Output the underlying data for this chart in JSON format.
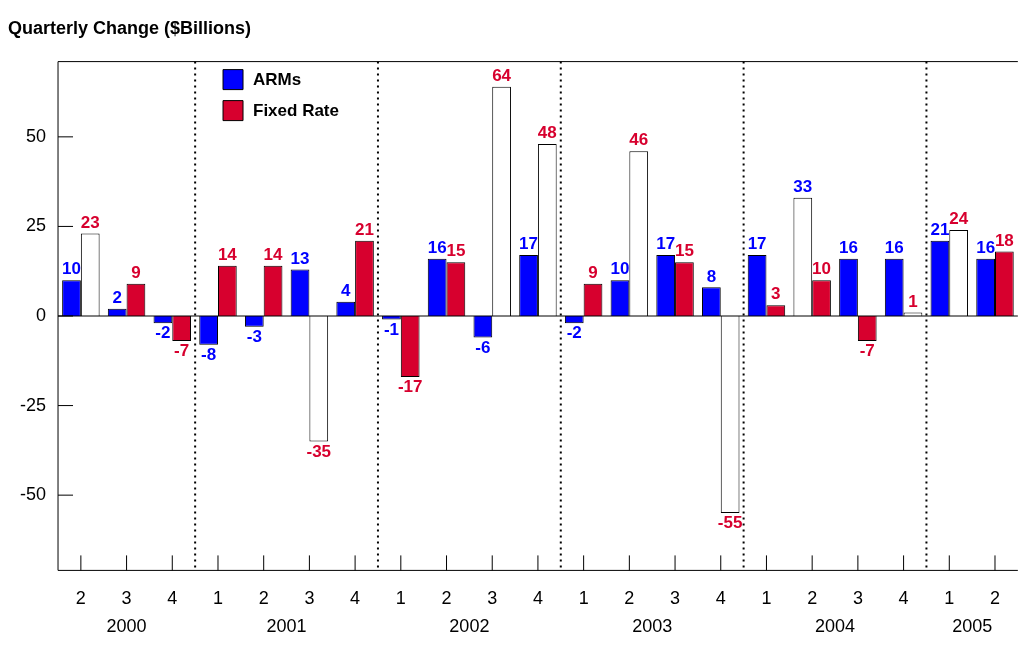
{
  "chart_data": {
    "type": "bar",
    "ylabel": "Quarterly Change ($Billions)",
    "categories": [
      "2",
      "3",
      "4",
      "1",
      "2",
      "3",
      "4",
      "1",
      "2",
      "3",
      "4",
      "1",
      "2",
      "3",
      "4",
      "1",
      "2",
      "3",
      "4",
      "1",
      "2"
    ],
    "series": [
      {
        "name": "ARMs",
        "color": "#0000ff",
        "colors": [
          "#0000ff",
          "#0000ff",
          "#0000ff",
          "#0000ff",
          "#0000ff",
          "#0000ff",
          "#0000ff",
          "#0000ff",
          "#0000ff",
          "#0000ff",
          "#0000ff",
          "#0000ff",
          "#0000ff",
          "#0000ff",
          "#0000ff",
          "#0000ff",
          "#ffffff",
          "#0000ff",
          "#0000ff",
          "#0000ff",
          "#0000ff"
        ],
        "values": [
          10,
          2,
          -2,
          -8,
          -3,
          13,
          4,
          -1,
          16,
          -6,
          17,
          -2,
          10,
          17,
          8,
          17,
          33,
          16,
          16,
          21,
          16
        ]
      },
      {
        "name": "Fixed Rate",
        "color": "#d7002e",
        "colors": [
          "#ffffff",
          "#d7002e",
          "#d7002e",
          "#d7002e",
          "#d7002e",
          "#ffffff",
          "#d7002e",
          "#d7002e",
          "#d7002e",
          "#ffffff",
          "#ffffff",
          "#d7002e",
          "#ffffff",
          "#d7002e",
          "#ffffff",
          "#d7002e",
          "#d7002e",
          "#d7002e",
          "#ffffff",
          "#ffffff",
          "#d7002e"
        ],
        "values": [
          23,
          9,
          -7,
          14,
          14,
          -35,
          21,
          -17,
          15,
          64,
          48,
          9,
          46,
          15,
          -55,
          3,
          10,
          -7,
          1,
          24,
          18
        ]
      }
    ],
    "ylim": [
      -71,
      71
    ],
    "yticks": [
      -50,
      -25,
      0,
      25,
      50
    ],
    "ref_lines": [
      {
        "axis": "y",
        "value": 0,
        "color": "#000000",
        "line_style": "solid"
      }
    ],
    "annotations": [
      "2000",
      "2001",
      "2002",
      "2003",
      "2004",
      "2005"
    ],
    "data_labels": true,
    "legend": "top left",
    "grid": false
  }
}
